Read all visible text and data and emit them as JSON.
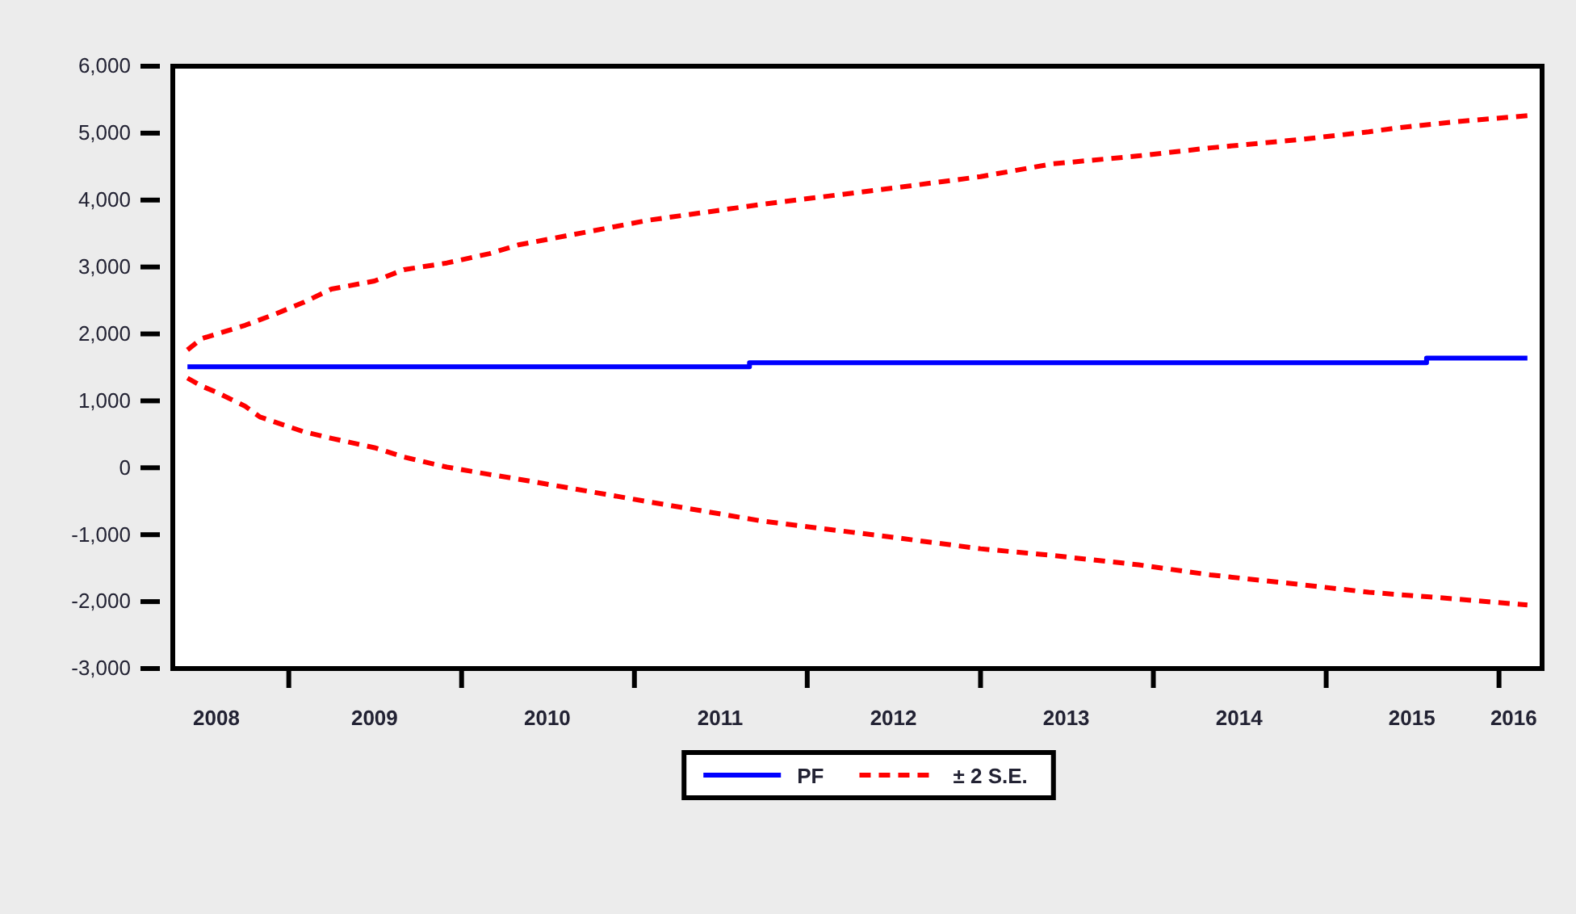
{
  "chart_data": {
    "type": "line",
    "legend": "bottom",
    "grid": false,
    "line_style": "dashed",
    "xlim": [
      "2008-05",
      "2016-04"
    ],
    "xticks": [
      {
        "value": "2009-01",
        "label": null
      },
      {
        "value": "2010-01",
        "label": null
      },
      {
        "value": "2011-01",
        "label": null
      },
      {
        "value": "2012-01",
        "label": null
      },
      {
        "value": "2013-01",
        "label": null
      },
      {
        "value": "2014-01",
        "label": null
      },
      {
        "value": "2015-01",
        "label": null
      },
      {
        "value": "2016-01",
        "label": null
      },
      {
        "value": "2008-08",
        "label": "2008"
      },
      {
        "value": "2009-07",
        "label": "2009"
      },
      {
        "value": "2010-07",
        "label": "2010"
      },
      {
        "value": "2011-07",
        "label": "2011"
      },
      {
        "value": "2012-07",
        "label": "2012"
      },
      {
        "value": "2013-07",
        "label": "2013"
      },
      {
        "value": "2014-07",
        "label": "2014"
      },
      {
        "value": "2015-07",
        "label": "2015"
      },
      {
        "value": "2016-02",
        "label": "2016"
      }
    ],
    "ylim": [
      -3000,
      6000
    ],
    "yticks": [
      {
        "value": -3000,
        "label": "-3,000"
      },
      {
        "value": -2000,
        "label": "-2,000"
      },
      {
        "value": -1000,
        "label": "-1,000"
      },
      0,
      {
        "value": 1000,
        "label": "1,000"
      },
      {
        "value": 2000,
        "label": "2,000"
      },
      {
        "value": 3000,
        "label": "3,000"
      },
      {
        "value": 4000,
        "label": "4,000"
      },
      {
        "value": 5000,
        "label": "5,000"
      },
      {
        "value": 6000,
        "label": "6,000"
      }
    ],
    "series": [
      {
        "name": "PF",
        "type": "step",
        "line_style": "solid",
        "color": "#0000ff",
        "x": [
          "2008-06",
          "2011-09",
          "2015-08",
          "2016-03"
        ],
        "values": [
          1510,
          1570,
          1640,
          1640
        ]
      },
      {
        "name": "± 2 S.E.",
        "color": "#ff0000",
        "x": [
          "2008-06",
          "2008-07",
          "2008-10",
          "2008-12",
          "2009-02",
          "2009-04",
          "2009-07",
          "2009-09",
          "2009-12",
          "2010-03",
          "2010-05",
          "2011-02",
          "2011-10",
          "2012-07",
          "2013-01",
          "2013-06",
          "2013-12",
          "2014-05",
          "2014-11",
          "2015-04",
          "2015-06",
          "2015-10",
          "2016-03"
        ],
        "values": [
          1760,
          1930,
          2130,
          2290,
          2470,
          2670,
          2790,
          2960,
          3060,
          3200,
          3330,
          3700,
          3940,
          4180,
          4350,
          4540,
          4660,
          4780,
          4900,
          5020,
          5080,
          5170,
          5260
        ]
      },
      {
        "color": "#ff0000",
        "x": [
          "2008-06",
          "2008-07",
          "2008-08",
          "2008-10",
          "2008-11",
          "2009-02",
          "2009-04",
          "2009-07",
          "2009-09",
          "2009-12",
          "2010-03",
          "2010-05",
          "2011-02",
          "2011-10",
          "2012-07",
          "2013-01",
          "2013-06",
          "2013-12",
          "2014-05",
          "2014-11",
          "2015-04",
          "2015-10",
          "2016-03"
        ],
        "values": [
          1340,
          1220,
          1130,
          920,
          760,
          540,
          440,
          300,
          160,
          10,
          -100,
          -170,
          -510,
          -800,
          -1040,
          -1210,
          -1310,
          -1450,
          -1600,
          -1740,
          -1860,
          -1960,
          -2050
        ]
      }
    ]
  }
}
